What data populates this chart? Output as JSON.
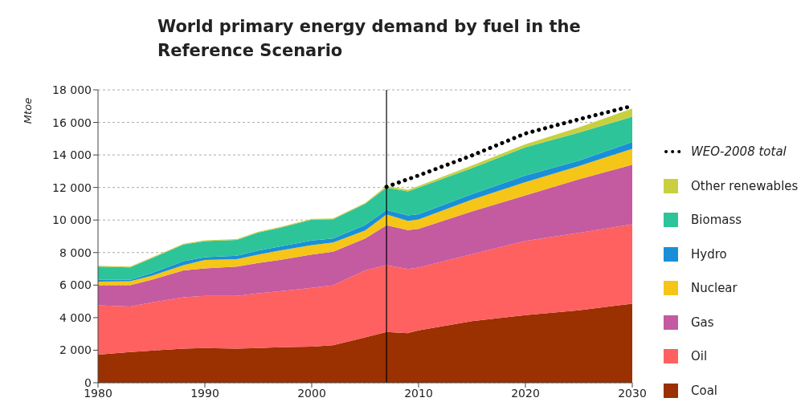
{
  "chart_data": {
    "type": "area",
    "title": "World primary energy demand by fuel in the Reference Scenario",
    "ylabel": "Mtoe",
    "stacked": true,
    "x": [
      1980,
      1983,
      1985,
      1988,
      1990,
      1993,
      1995,
      1997,
      2000,
      2002,
      2005,
      2007,
      2009,
      2010,
      2015,
      2020,
      2025,
      2030
    ],
    "series": [
      {
        "name": "Coal",
        "color": "#9b3000",
        "values": [
          1720,
          1890,
          1970,
          2100,
          2130,
          2100,
          2130,
          2180,
          2220,
          2300,
          2790,
          3120,
          3050,
          3220,
          3790,
          4150,
          4450,
          4860
        ]
      },
      {
        "name": "Oil",
        "color": "#ff6060",
        "values": [
          3040,
          2790,
          2960,
          3150,
          3210,
          3240,
          3370,
          3440,
          3610,
          3690,
          4110,
          4110,
          3940,
          3860,
          4110,
          4570,
          4760,
          4880
        ]
      },
      {
        "name": "Gas",
        "color": "#c45aa0",
        "values": [
          1230,
          1310,
          1390,
          1650,
          1690,
          1800,
          1860,
          1930,
          2050,
          2060,
          1970,
          2450,
          2390,
          2380,
          2630,
          2790,
          3290,
          3660
        ]
      },
      {
        "name": "Nuclear",
        "color": "#f5c518",
        "values": [
          220,
          250,
          250,
          320,
          520,
          450,
          520,
          580,
          580,
          570,
          490,
          660,
          570,
          570,
          730,
          820,
          820,
          980
        ]
      },
      {
        "name": "Hydro",
        "color": "#1a8fd8",
        "values": [
          110,
          80,
          160,
          250,
          170,
          210,
          250,
          240,
          280,
          250,
          330,
          270,
          330,
          330,
          330,
          410,
          330,
          410
        ]
      },
      {
        "name": "Biomass",
        "color": "#2ec49a",
        "values": [
          820,
          770,
          910,
          1020,
          980,
          980,
          1100,
          1150,
          1280,
          1180,
          1310,
          1380,
          1480,
          1640,
          1600,
          1730,
          1720,
          1560
        ]
      },
      {
        "name": "Other renewables",
        "color": "#c8d040",
        "values": [
          50,
          50,
          50,
          50,
          50,
          50,
          50,
          50,
          50,
          50,
          50,
          100,
          100,
          90,
          160,
          190,
          330,
          500
        ]
      },
      {
        "name": "WEO-2008 total",
        "type": "line",
        "color": "#000000",
        "line_style": "dotted",
        "marker": "none",
        "x": [
          2007,
          2010,
          2015,
          2020,
          2025,
          2030
        ],
        "values": [
          12040,
          12740,
          13970,
          15320,
          16190,
          17010
        ]
      }
    ],
    "xlim": [
      1980,
      2030
    ],
    "xticks": [
      1980,
      1990,
      2000,
      2010,
      2020,
      2030
    ],
    "ylim": [
      0,
      18000
    ],
    "yticks": [
      0,
      {
        "value": 2000,
        "label": "2 000"
      },
      {
        "value": 4000,
        "label": "4 000"
      },
      {
        "value": 6000,
        "label": "6 000"
      },
      {
        "value": 8000,
        "label": "8 000"
      },
      {
        "value": 10000,
        "label": "10 000"
      },
      {
        "value": 12000,
        "label": "12 000"
      },
      {
        "value": 14000,
        "label": "14 000"
      },
      {
        "value": 16000,
        "label": "16 000"
      },
      {
        "value": 18000,
        "label": "18 000"
      }
    ],
    "grid": "y",
    "legend": "right",
    "ref_lines": [
      {
        "axis": "x",
        "value": 2007,
        "color": "#000000"
      }
    ]
  }
}
